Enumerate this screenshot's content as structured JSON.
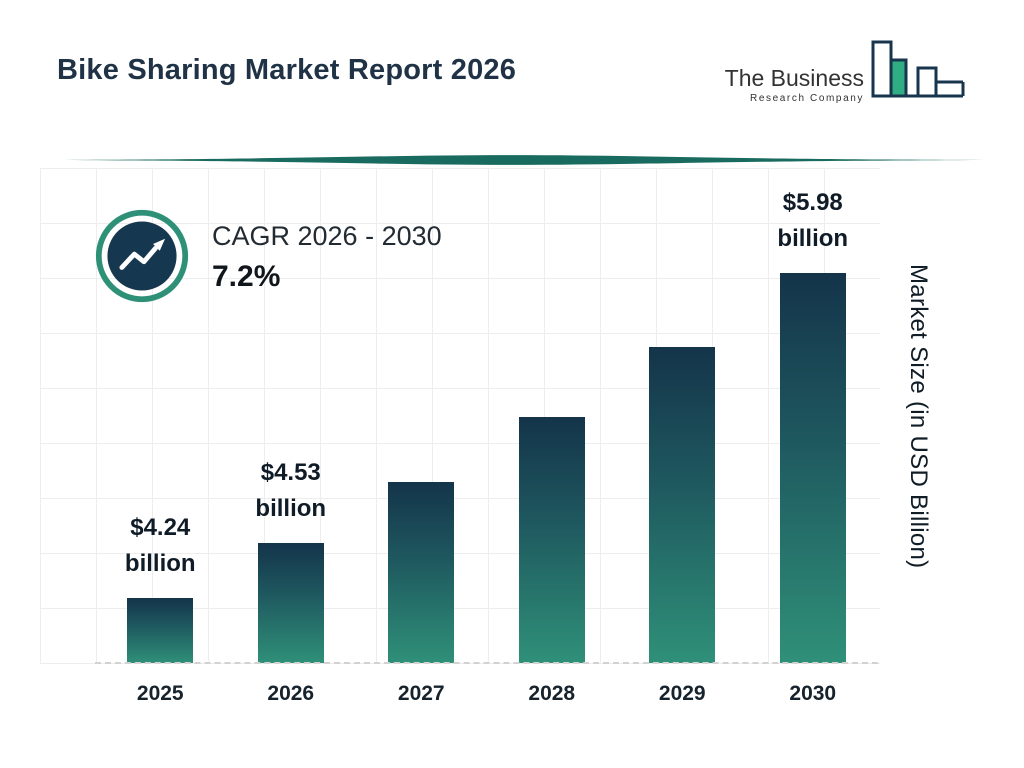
{
  "header": {
    "title": "Bike Sharing Market Report 2026"
  },
  "logo": {
    "line1": "The Business",
    "line2": "Research Company"
  },
  "cagr": {
    "label": "CAGR 2026 - 2030",
    "value": "7.2%"
  },
  "chart_data": {
    "type": "bar",
    "title": "Bike Sharing Market Report 2026",
    "categories": [
      "2025",
      "2026",
      "2027",
      "2028",
      "2029",
      "2030"
    ],
    "values": [
      4.24,
      4.53,
      4.86,
      5.21,
      5.58,
      5.98
    ],
    "bar_labels": [
      {
        "line1": "$4.24",
        "line2": "billion"
      },
      {
        "line1": "$4.53",
        "line2": "billion"
      },
      null,
      null,
      null,
      {
        "line1": "$5.98",
        "line2": "billion"
      }
    ],
    "xlabel": "",
    "ylabel": "Market Size (in USD Billion)",
    "ylim": [
      3.89,
      6.53
    ],
    "grid": true,
    "legend": "none",
    "cagr_percent": "7.2%",
    "cagr_period": "2026 - 2030",
    "colors": {
      "bar_top": "#14344a",
      "bar_bottom": "#2f9078",
      "accent_teal": "#1a6b5f",
      "logo_navy": "#17364d",
      "logo_green": "#2fae84"
    }
  }
}
